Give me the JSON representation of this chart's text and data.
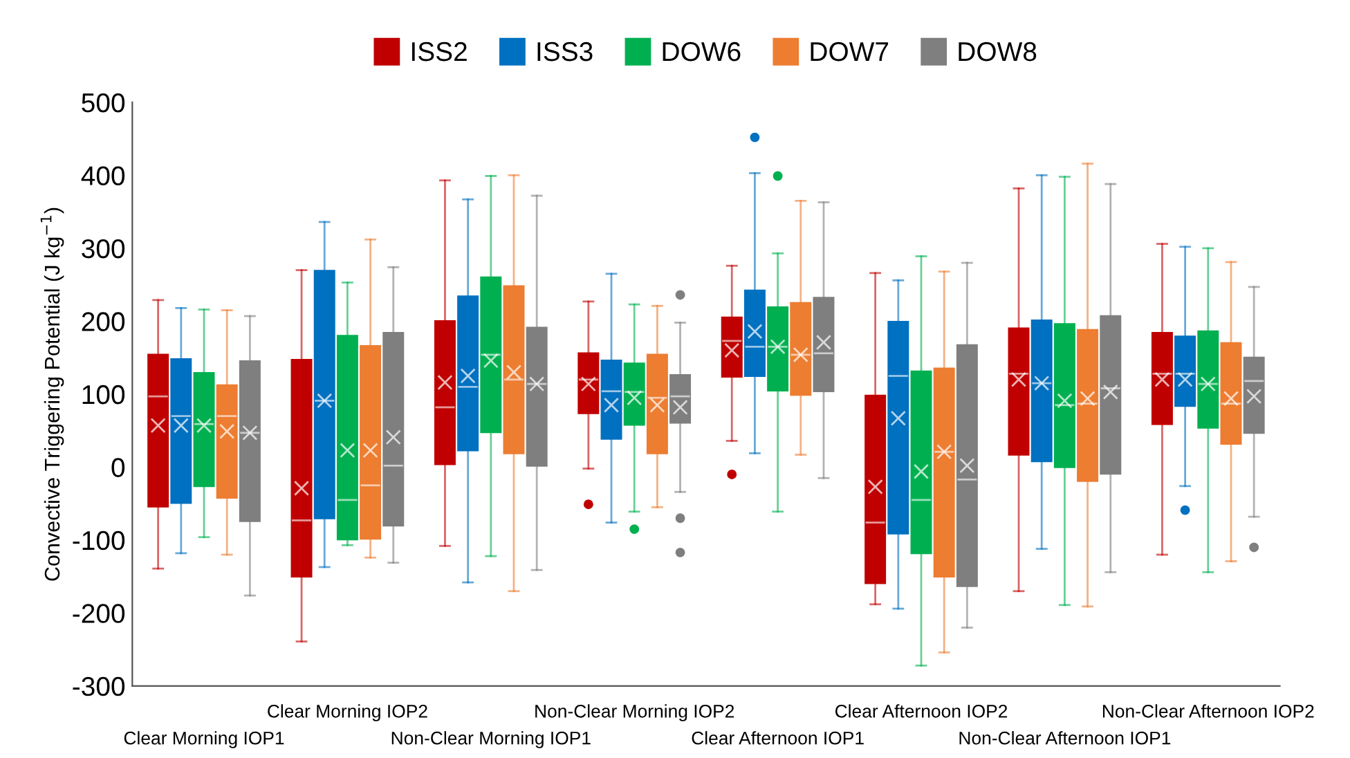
{
  "chart_data": {
    "type": "box",
    "ylabel": "Convective Triggering Potential (J kg$^{−1}$)",
    "categories": [
      "Clear Morning IOP1",
      "Clear Morning IOP2",
      "Non-Clear Morning IOP1",
      "Non-Clear Morning IOP2",
      "Clear Afternoon IOP1",
      "Clear Afternoon IOP2",
      "Non-Clear Afternoon IOP1",
      "Non-Clear Afternoon IOP2"
    ],
    "ylim": [
      -300,
      500
    ],
    "yticks": [
      -300,
      -200,
      -100,
      0,
      100,
      200,
      300,
      400,
      500
    ],
    "grid": false,
    "legend": "top",
    "series": [
      {
        "name": "ISS2",
        "color": "#c00000",
        "boxes": [
          {
            "low": -139,
            "q1": -54,
            "median": 97,
            "q3": 154,
            "high": 229,
            "mean": 57
          },
          {
            "low": -239,
            "q1": -150,
            "median": -73,
            "q3": 147,
            "high": 270,
            "mean": -29
          },
          {
            "low": -108,
            "q1": 4,
            "median": 82,
            "q3": 200,
            "high": 393,
            "mean": 116
          },
          {
            "low": -2,
            "q1": 74,
            "median": 120,
            "q3": 156,
            "high": 227,
            "mean": 114,
            "outliers": [
              -51
            ]
          },
          {
            "low": 36,
            "q1": 124,
            "median": 173,
            "q3": 205,
            "high": 276,
            "mean": 160,
            "outliers": [
              -10
            ]
          },
          {
            "low": -188,
            "q1": -159,
            "median": -76,
            "q3": 98,
            "high": 266,
            "mean": -27
          },
          {
            "low": -170,
            "q1": 17,
            "median": 128,
            "q3": 190,
            "high": 382,
            "mean": 120
          },
          {
            "low": -120,
            "q1": 59,
            "median": 128,
            "q3": 184,
            "high": 306,
            "mean": 120
          }
        ]
      },
      {
        "name": "ISS3",
        "color": "#0070c0",
        "boxes": [
          {
            "low": -118,
            "q1": -49,
            "median": 70,
            "q3": 148,
            "high": 218,
            "mean": 57
          },
          {
            "low": -137,
            "q1": -70,
            "median": 91,
            "q3": 269,
            "high": 336,
            "mean": 91
          },
          {
            "low": -158,
            "q1": 23,
            "median": 110,
            "q3": 234,
            "high": 367,
            "mean": 125
          },
          {
            "low": -76,
            "q1": 39,
            "median": 104,
            "q3": 146,
            "high": 265,
            "mean": 85
          },
          {
            "low": 19,
            "q1": 125,
            "median": 165,
            "q3": 242,
            "high": 403,
            "mean": 186,
            "outliers": [
              452
            ]
          },
          {
            "low": -194,
            "q1": -91,
            "median": 125,
            "q3": 199,
            "high": 256,
            "mean": 67
          },
          {
            "low": -112,
            "q1": 8,
            "median": 115,
            "q3": 201,
            "high": 400,
            "mean": 115
          },
          {
            "low": -26,
            "q1": 84,
            "median": 128,
            "q3": 179,
            "high": 302,
            "mean": 120,
            "outliers": [
              -59
            ]
          }
        ]
      },
      {
        "name": "DOW6",
        "color": "#00b050",
        "boxes": [
          {
            "low": -96,
            "q1": -26,
            "median": 59,
            "q3": 129,
            "high": 216,
            "mean": 57
          },
          {
            "low": -107,
            "q1": -99,
            "median": -45,
            "q3": 180,
            "high": 253,
            "mean": 23
          },
          {
            "low": -122,
            "q1": 48,
            "median": 154,
            "q3": 260,
            "high": 399,
            "mean": 146
          },
          {
            "low": -61,
            "q1": 58,
            "median": 103,
            "q3": 142,
            "high": 223,
            "mean": 95,
            "outliers": [
              -85
            ]
          },
          {
            "low": -61,
            "q1": 105,
            "median": 165,
            "q3": 219,
            "high": 293,
            "mean": 165,
            "outliers": [
              399
            ]
          },
          {
            "low": -272,
            "q1": -118,
            "median": -45,
            "q3": 131,
            "high": 289,
            "mean": -6
          },
          {
            "low": -189,
            "q1": 0,
            "median": 85,
            "q3": 196,
            "high": 398,
            "mean": 91
          },
          {
            "low": -144,
            "q1": 54,
            "median": 114,
            "q3": 186,
            "high": 300,
            "mean": 114
          }
        ]
      },
      {
        "name": "DOW7",
        "color": "#ed7d31",
        "boxes": [
          {
            "low": -120,
            "q1": -42,
            "median": 70,
            "q3": 112,
            "high": 215,
            "mean": 49
          },
          {
            "low": -124,
            "q1": -98,
            "median": -25,
            "q3": 166,
            "high": 312,
            "mean": 23
          },
          {
            "low": -170,
            "q1": 19,
            "median": 120,
            "q3": 248,
            "high": 400,
            "mean": 130
          },
          {
            "low": -55,
            "q1": 19,
            "median": 95,
            "q3": 154,
            "high": 221,
            "mean": 85
          },
          {
            "low": 17,
            "q1": 99,
            "median": 154,
            "q3": 225,
            "high": 365,
            "mean": 154
          },
          {
            "low": -254,
            "q1": -150,
            "median": 21,
            "q3": 135,
            "high": 268,
            "mean": 21
          },
          {
            "low": -191,
            "q1": -19,
            "median": 87,
            "q3": 188,
            "high": 416,
            "mean": 94
          },
          {
            "low": -129,
            "q1": 32,
            "median": 87,
            "q3": 170,
            "high": 281,
            "mean": 94
          }
        ]
      },
      {
        "name": "DOW8",
        "color": "#7f7f7f",
        "boxes": [
          {
            "low": -176,
            "q1": -74,
            "median": 47,
            "q3": 145,
            "high": 207,
            "mean": 47
          },
          {
            "low": -131,
            "q1": -80,
            "median": 2,
            "q3": 184,
            "high": 274,
            "mean": 41
          },
          {
            "low": -141,
            "q1": 2,
            "median": 114,
            "q3": 191,
            "high": 372,
            "mean": 114
          },
          {
            "low": -34,
            "q1": 61,
            "median": 97,
            "q3": 126,
            "high": 198,
            "mean": 82,
            "outliers": [
              236,
              -70,
              -117
            ]
          },
          {
            "low": -15,
            "q1": 104,
            "median": 156,
            "q3": 232,
            "high": 363,
            "mean": 171
          },
          {
            "low": -220,
            "q1": -163,
            "median": -17,
            "q3": 167,
            "high": 280,
            "mean": 2
          },
          {
            "low": -144,
            "q1": -9,
            "median": 108,
            "q3": 207,
            "high": 388,
            "mean": 103
          },
          {
            "low": -68,
            "q1": 47,
            "median": 118,
            "q3": 150,
            "high": 247,
            "mean": 97,
            "outliers": [
              -110
            ]
          }
        ]
      }
    ]
  }
}
